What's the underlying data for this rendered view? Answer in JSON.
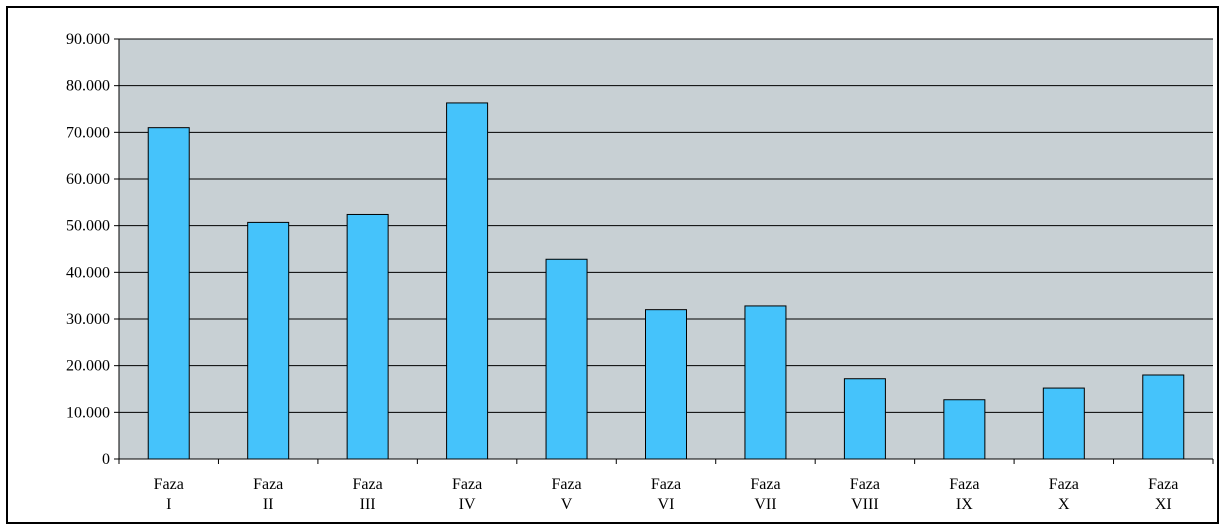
{
  "chart_data": {
    "type": "bar",
    "categories": [
      [
        "Faza",
        "I"
      ],
      [
        "Faza",
        "II"
      ],
      [
        "Faza",
        "III"
      ],
      [
        "Faza",
        "IV"
      ],
      [
        "Faza",
        "V"
      ],
      [
        "Faza",
        "VI"
      ],
      [
        "Faza",
        "VII"
      ],
      [
        "Faza",
        "VIII"
      ],
      [
        "Faza",
        "IX"
      ],
      [
        "Faza",
        "X"
      ],
      [
        "Faza",
        "XI"
      ]
    ],
    "values": [
      71000,
      50700,
      52400,
      76300,
      42800,
      32000,
      32800,
      17200,
      12700,
      15200,
      18000
    ],
    "ylim": [
      0,
      90000
    ],
    "yticks": [
      0,
      10000,
      20000,
      30000,
      40000,
      50000,
      60000,
      70000,
      80000,
      90000
    ],
    "ytick_labels": [
      "0",
      "10.000",
      "20.000",
      "30.000",
      "40.000",
      "50.000",
      "60.000",
      "70.000",
      "80.000",
      "90.000"
    ],
    "title": "",
    "xlabel": "",
    "ylabel": "",
    "grid": true,
    "colors": {
      "bar_fill": "#45c3fb",
      "bar_stroke": "#000000",
      "plot_background": "#c8d0d4",
      "gridline": "#000000"
    }
  }
}
